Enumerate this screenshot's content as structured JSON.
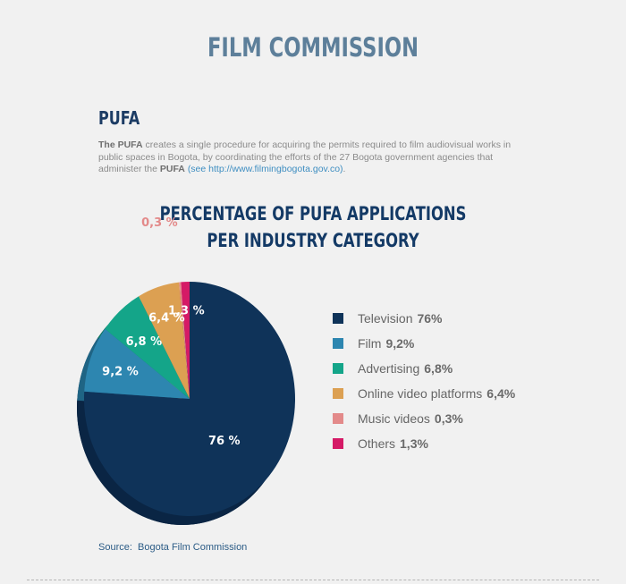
{
  "header": {
    "title": "FILM COMMISSION",
    "section": "PUFA"
  },
  "intro": {
    "part1_bold": "The PUFA",
    "part1": " creates a single procedure for acquiring the permits required to film audiovisual works in public spaces in Bogota, by coordinating the efforts of the 27 Bogota government agencies that administer the ",
    "part2_bold": "PUFA",
    "link": " (see http://www.filmingbogota.gov.co)",
    "end": "."
  },
  "chart_data": {
    "type": "pie",
    "title_line1": "PERCENTAGE OF PUFA APPLICATIONS",
    "title_line2": "PER INDUSTRY CATEGORY",
    "slices": [
      {
        "name": "Television",
        "legend_value": "76%",
        "slice_label": "76 %",
        "value": 76,
        "color": "#0f3359",
        "side": "#0a2544"
      },
      {
        "name": "Film",
        "legend_value": "9,2%",
        "slice_label": "9,2 %",
        "value": 9.2,
        "color": "#2d86b0",
        "side": "#1f6484"
      },
      {
        "name": "Advertising",
        "legend_value": "6,8%",
        "slice_label": "6,8 %",
        "value": 6.8,
        "color": "#14a589",
        "side": "#0e7a65"
      },
      {
        "name": "Online video platforms",
        "legend_value": "6,4%",
        "slice_label": "6,4 %",
        "value": 6.4,
        "color": "#dca052",
        "side": "#a8773a"
      },
      {
        "name": "Music videos",
        "legend_value": "0,3%",
        "slice_label": "0,3 %",
        "value": 0.3,
        "color": "#e38a8a",
        "side": "#b36565"
      },
      {
        "name": "Others",
        "legend_value": "1,3%",
        "slice_label": "1,3 %",
        "value": 1.3,
        "color": "#d51a66",
        "side": "#9e124b"
      }
    ]
  },
  "source": {
    "label": "Source:",
    "text": "Bogota Film Commission"
  }
}
